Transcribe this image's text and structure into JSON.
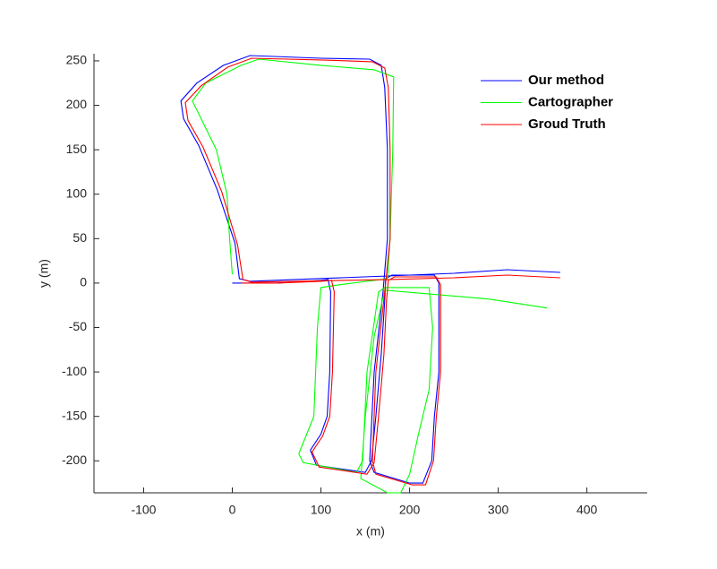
{
  "chart_data": {
    "type": "line",
    "xlabel": "x (m)",
    "ylabel": "y (m)",
    "xlim": [
      -156,
      468
    ],
    "ylim": [
      -236,
      258
    ],
    "xticks": [
      -100,
      0,
      100,
      200,
      300,
      400
    ],
    "yticks": [
      -200,
      -150,
      -100,
      -50,
      0,
      50,
      100,
      150,
      200,
      250
    ],
    "legend": "upper right",
    "series": [
      {
        "name": "Our method",
        "color": "#0000ff",
        "x": [
          0,
          50,
          100,
          108,
          111,
          110,
          107,
          100,
          88,
          95,
          150,
          157,
          162,
          168,
          172,
          173,
          180,
          228,
          233,
          233,
          228,
          225,
          215,
          200,
          160,
          155,
          160,
          170,
          175,
          175,
          172,
          168,
          155,
          100,
          20,
          -10,
          -40,
          -58,
          -55,
          -38,
          -17,
          3,
          8,
          20,
          175,
          250,
          310,
          370
        ],
        "values": [
          0,
          0,
          3,
          4,
          -10,
          -100,
          -150,
          -170,
          -188,
          -205,
          -213,
          -200,
          -150,
          -80,
          -20,
          5,
          9,
          9,
          0,
          -100,
          -150,
          -200,
          -225,
          -225,
          -213,
          -200,
          -100,
          -10,
          50,
          150,
          220,
          245,
          252,
          253,
          256,
          245,
          225,
          205,
          185,
          155,
          105,
          45,
          5,
          2,
          8,
          11,
          15,
          12
        ]
      },
      {
        "name": "Cartographer",
        "color": "#00ff00",
        "x": [
          0,
          -3,
          -6,
          -18,
          -45,
          -30,
          10,
          30,
          100,
          160,
          182,
          181,
          178,
          175,
          120,
          100,
          96,
          92,
          75,
          80,
          140,
          147,
          152,
          165,
          172,
          222,
          226,
          222,
          210,
          200,
          190,
          175,
          145,
          150,
          160,
          172,
          290,
          355
        ],
        "values": [
          10,
          50,
          100,
          150,
          205,
          225,
          245,
          252,
          245,
          240,
          232,
          150,
          50,
          5,
          -2,
          -5,
          -50,
          -150,
          -192,
          -202,
          -213,
          -200,
          -100,
          -10,
          -5,
          -5,
          -50,
          -120,
          -170,
          -215,
          -236,
          -236,
          -220,
          -150,
          -60,
          -8,
          -18,
          -28
        ]
      },
      {
        "name": "Groud Truth",
        "color": "#ff0000",
        "x": [
          10,
          50,
          100,
          112,
          115,
          113,
          110,
          102,
          90,
          98,
          152,
          160,
          165,
          171,
          174,
          176,
          183,
          230,
          235,
          235,
          230,
          227,
          218,
          203,
          162,
          158,
          162,
          172,
          178,
          178,
          176,
          172,
          158,
          100,
          22,
          -5,
          -35,
          -53,
          -50,
          -33,
          -12,
          6,
          12,
          22,
          178,
          250,
          310,
          370
        ],
        "values": [
          0,
          0,
          2,
          3,
          -10,
          -100,
          -150,
          -172,
          -190,
          -207,
          -215,
          -202,
          -150,
          -80,
          -20,
          3,
          7,
          7,
          -2,
          -100,
          -152,
          -200,
          -227,
          -227,
          -215,
          -200,
          -100,
          -10,
          50,
          150,
          220,
          242,
          249,
          251,
          253,
          243,
          222,
          203,
          183,
          153,
          103,
          43,
          4,
          1,
          4,
          6,
          9,
          6
        ]
      }
    ]
  }
}
